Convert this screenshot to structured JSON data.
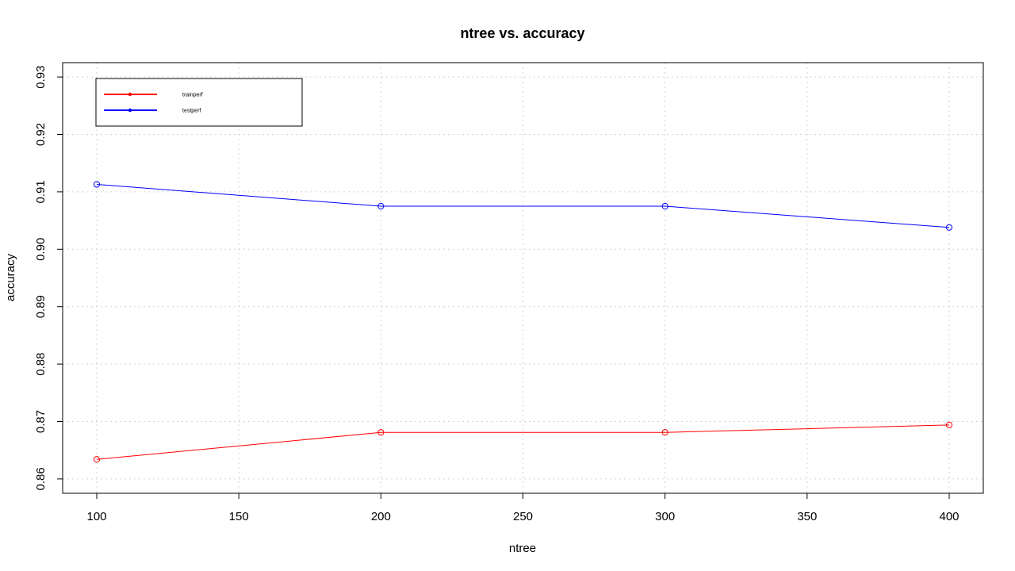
{
  "chart_data": {
    "type": "line",
    "title": "ntree vs. accuracy",
    "xlabel": "ntree",
    "ylabel": "accuracy",
    "x": [
      100,
      200,
      300,
      400
    ],
    "xlim": [
      88,
      412
    ],
    "ylim": [
      0.8575,
      0.9325
    ],
    "xticks": [
      100,
      150,
      200,
      250,
      300,
      350,
      400
    ],
    "yticks": [
      0.86,
      0.87,
      0.88,
      0.89,
      0.9,
      0.91,
      0.92,
      0.93
    ],
    "ytick_labels": [
      "0.86",
      "0.87",
      "0.88",
      "0.89",
      "0.90",
      "0.91",
      "0.92",
      "0.93"
    ],
    "grid": true,
    "legend_position": "top-left",
    "series": [
      {
        "name": "trainperf",
        "color": "#ff0000",
        "values": [
          0.8634,
          0.8681,
          0.8681,
          0.8694
        ]
      },
      {
        "name": "testperf",
        "color": "#0000ff",
        "values": [
          0.9113,
          0.9075,
          0.9075,
          0.9038
        ]
      }
    ]
  }
}
